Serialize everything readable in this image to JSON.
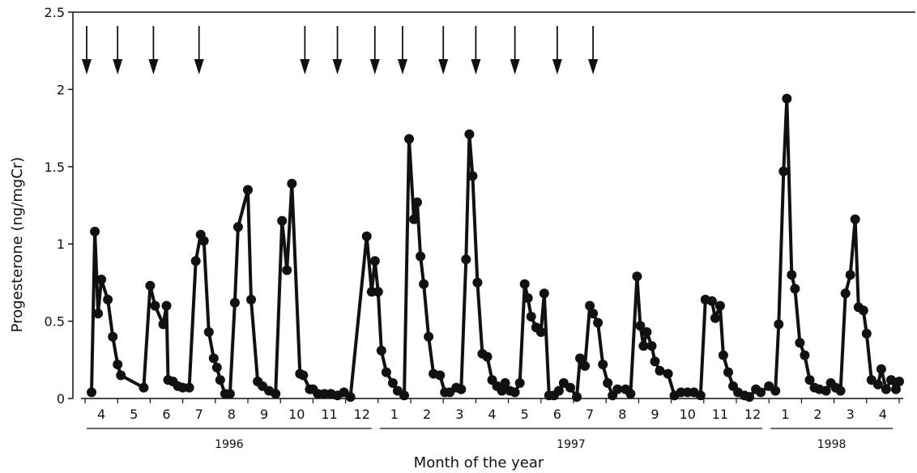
{
  "chart_data": {
    "type": "line",
    "title": "",
    "xlabel": "Month of the year",
    "ylabel": "Progesterone (ng/mgCr)",
    "ylim": [
      0,
      2.5
    ],
    "yticks": [
      "0",
      "0.5",
      "1",
      "1.5",
      "2",
      "2.5"
    ],
    "grid": false,
    "legend": "none",
    "colors": {
      "line": "#111111",
      "marker": "#111111"
    },
    "x_axis_months": [
      {
        "label": "4",
        "t": 0.5
      },
      {
        "label": "5",
        "t": 1.5
      },
      {
        "label": "6",
        "t": 2.5
      },
      {
        "label": "7",
        "t": 3.5
      },
      {
        "label": "8",
        "t": 4.5
      },
      {
        "label": "9",
        "t": 5.5
      },
      {
        "label": "10",
        "t": 6.5
      },
      {
        "label": "11",
        "t": 7.5
      },
      {
        "label": "12",
        "t": 8.5
      },
      {
        "label": "1",
        "t": 9.5
      },
      {
        "label": "2",
        "t": 10.5
      },
      {
        "label": "3",
        "t": 11.5
      },
      {
        "label": "4",
        "t": 12.5
      },
      {
        "label": "5",
        "t": 13.5
      },
      {
        "label": "6",
        "t": 14.5
      },
      {
        "label": "7",
        "t": 15.5
      },
      {
        "label": "8",
        "t": 16.5
      },
      {
        "label": "9",
        "t": 17.5
      },
      {
        "label": "10",
        "t": 18.5
      },
      {
        "label": "11",
        "t": 19.5
      },
      {
        "label": "12",
        "t": 20.5
      },
      {
        "label": "1",
        "t": 21.5
      },
      {
        "label": "2",
        "t": 22.5
      },
      {
        "label": "3",
        "t": 23.5
      },
      {
        "label": "4",
        "t": 24.5
      }
    ],
    "years": [
      {
        "label": "1996",
        "start": 0,
        "end": 9
      },
      {
        "label": "1997",
        "start": 9,
        "end": 21
      },
      {
        "label": "1998",
        "start": 21,
        "end": 25
      }
    ],
    "arrows_t": [
      0.05,
      1.0,
      2.1,
      3.5,
      6.75,
      7.75,
      8.9,
      9.75,
      11.0,
      12.0,
      13.2,
      14.5,
      15.6
    ],
    "series": [
      {
        "points": [
          [
            0.2,
            0.04
          ],
          [
            0.3,
            1.08
          ],
          [
            0.4,
            0.55
          ],
          [
            0.5,
            0.77
          ],
          [
            0.7,
            0.64
          ],
          [
            0.85,
            0.4
          ],
          [
            1.0,
            0.22
          ],
          [
            1.1,
            0.15
          ],
          [
            1.8,
            0.07
          ],
          [
            2.0,
            0.73
          ],
          [
            2.15,
            0.6
          ],
          [
            2.4,
            0.48
          ],
          [
            2.5,
            0.6
          ],
          [
            2.55,
            0.12
          ],
          [
            2.7,
            0.11
          ],
          [
            2.85,
            0.08
          ],
          [
            3.0,
            0.07
          ],
          [
            3.2,
            0.07
          ],
          [
            3.4,
            0.89
          ],
          [
            3.55,
            1.06
          ],
          [
            3.65,
            1.02
          ],
          [
            3.8,
            0.43
          ],
          [
            3.95,
            0.26
          ],
          [
            4.05,
            0.2
          ],
          [
            4.15,
            0.12
          ],
          [
            4.3,
            0.03
          ],
          [
            4.45,
            0.03
          ],
          [
            4.6,
            0.62
          ],
          [
            4.7,
            1.11
          ],
          [
            5.0,
            1.35
          ],
          [
            5.1,
            0.64
          ],
          [
            5.3,
            0.11
          ],
          [
            5.45,
            0.08
          ],
          [
            5.65,
            0.05
          ],
          [
            5.85,
            0.03
          ],
          [
            6.05,
            1.15
          ],
          [
            6.2,
            0.83
          ],
          [
            6.35,
            1.39
          ],
          [
            6.6,
            0.16
          ],
          [
            6.7,
            0.15
          ],
          [
            6.9,
            0.06
          ],
          [
            7.0,
            0.06
          ],
          [
            7.15,
            0.03
          ],
          [
            7.35,
            0.03
          ],
          [
            7.55,
            0.03
          ],
          [
            7.75,
            0.02
          ],
          [
            7.95,
            0.04
          ],
          [
            8.15,
            0.01
          ],
          [
            8.65,
            1.05
          ],
          [
            8.8,
            0.69
          ],
          [
            8.9,
            0.89
          ],
          [
            9.0,
            0.69
          ],
          [
            9.1,
            0.31
          ],
          [
            9.25,
            0.17
          ],
          [
            9.45,
            0.1
          ],
          [
            9.6,
            0.05
          ],
          [
            9.8,
            0.02
          ],
          [
            9.95,
            1.68
          ],
          [
            10.1,
            1.16
          ],
          [
            10.2,
            1.27
          ],
          [
            10.3,
            0.92
          ],
          [
            10.4,
            0.74
          ],
          [
            10.55,
            0.4
          ],
          [
            10.7,
            0.16
          ],
          [
            10.9,
            0.15
          ],
          [
            11.05,
            0.04
          ],
          [
            11.2,
            0.04
          ],
          [
            11.4,
            0.07
          ],
          [
            11.55,
            0.06
          ],
          [
            11.7,
            0.9
          ],
          [
            11.8,
            1.71
          ],
          [
            11.9,
            1.44
          ],
          [
            12.05,
            0.75
          ],
          [
            12.2,
            0.29
          ],
          [
            12.35,
            0.27
          ],
          [
            12.5,
            0.12
          ],
          [
            12.65,
            0.08
          ],
          [
            12.8,
            0.05
          ],
          [
            12.9,
            0.1
          ],
          [
            13.05,
            0.05
          ],
          [
            13.2,
            0.04
          ],
          [
            13.35,
            0.1
          ],
          [
            13.5,
            0.74
          ],
          [
            13.6,
            0.65
          ],
          [
            13.7,
            0.53
          ],
          [
            13.85,
            0.46
          ],
          [
            14.0,
            0.43
          ],
          [
            14.1,
            0.68
          ],
          [
            14.25,
            0.02
          ],
          [
            14.4,
            0.02
          ],
          [
            14.55,
            0.05
          ],
          [
            14.7,
            0.1
          ],
          [
            14.9,
            0.07
          ],
          [
            15.1,
            0.01
          ],
          [
            15.2,
            0.26
          ],
          [
            15.35,
            0.21
          ],
          [
            15.5,
            0.6
          ],
          [
            15.6,
            0.55
          ],
          [
            15.75,
            0.49
          ],
          [
            15.9,
            0.22
          ],
          [
            16.05,
            0.1
          ],
          [
            16.2,
            0.02
          ],
          [
            16.35,
            0.06
          ],
          [
            16.6,
            0.06
          ],
          [
            16.75,
            0.03
          ],
          [
            16.95,
            0.79
          ],
          [
            17.05,
            0.47
          ],
          [
            17.15,
            0.34
          ],
          [
            17.25,
            0.43
          ],
          [
            17.4,
            0.34
          ],
          [
            17.5,
            0.24
          ],
          [
            17.65,
            0.18
          ],
          [
            17.9,
            0.16
          ],
          [
            18.1,
            0.02
          ],
          [
            18.3,
            0.04
          ],
          [
            18.5,
            0.04
          ],
          [
            18.7,
            0.04
          ],
          [
            18.9,
            0.02
          ],
          [
            19.05,
            0.64
          ],
          [
            19.25,
            0.63
          ],
          [
            19.35,
            0.52
          ],
          [
            19.5,
            0.6
          ],
          [
            19.6,
            0.28
          ],
          [
            19.75,
            0.17
          ],
          [
            19.9,
            0.08
          ],
          [
            20.05,
            0.04
          ],
          [
            20.25,
            0.02
          ],
          [
            20.4,
            0.01
          ],
          [
            20.6,
            0.06
          ],
          [
            20.75,
            0.04
          ],
          [
            21.0,
            0.08
          ],
          [
            21.2,
            0.05
          ],
          [
            21.3,
            0.48
          ],
          [
            21.45,
            1.47
          ],
          [
            21.55,
            1.94
          ],
          [
            21.7,
            0.8
          ],
          [
            21.8,
            0.71
          ],
          [
            21.95,
            0.36
          ],
          [
            22.1,
            0.28
          ],
          [
            22.25,
            0.12
          ],
          [
            22.4,
            0.07
          ],
          [
            22.55,
            0.06
          ],
          [
            22.75,
            0.05
          ],
          [
            22.9,
            0.1
          ],
          [
            23.05,
            0.07
          ],
          [
            23.2,
            0.05
          ],
          [
            23.35,
            0.68
          ],
          [
            23.5,
            0.8
          ],
          [
            23.65,
            1.16
          ],
          [
            23.75,
            0.59
          ],
          [
            23.9,
            0.57
          ],
          [
            24.0,
            0.42
          ],
          [
            24.15,
            0.12
          ],
          [
            24.35,
            0.09
          ],
          [
            24.45,
            0.19
          ],
          [
            24.6,
            0.06
          ],
          [
            24.75,
            0.12
          ],
          [
            24.9,
            0.06
          ],
          [
            25.0,
            0.11
          ]
        ]
      }
    ]
  }
}
